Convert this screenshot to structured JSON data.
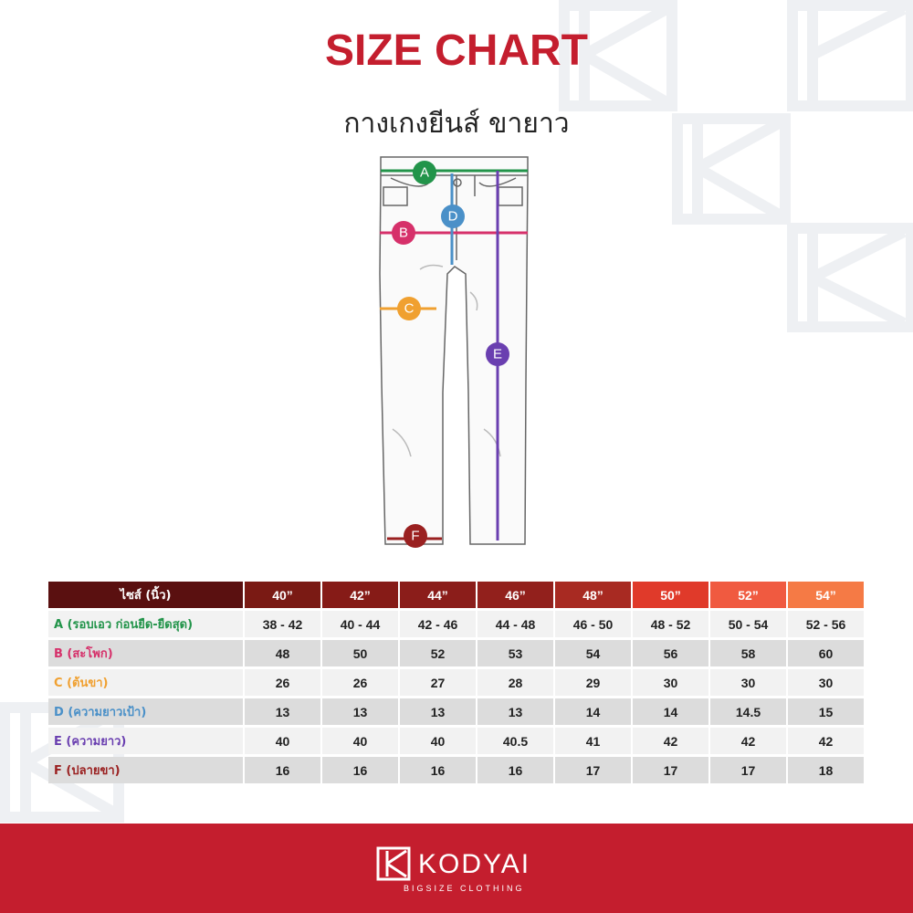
{
  "header": {
    "title": "SIZE CHART",
    "subtitle": "กางเกงยีนส์ ขายาว"
  },
  "diagram": {
    "labels": [
      "A",
      "B",
      "C",
      "D",
      "E",
      "F"
    ]
  },
  "table": {
    "header": [
      "ไซส์ (นิ้ว)",
      "40”",
      "42”",
      "44”",
      "46”",
      "48”",
      "50”",
      "52”",
      "54”"
    ],
    "rows": [
      [
        "A (รอบเอว ก่อนยืด-ยืดสุด)",
        "38 - 42",
        "40 - 44",
        "42 - 46",
        "44 - 48",
        "46 - 50",
        "48 - 52",
        "50 - 54",
        "52 - 56"
      ],
      [
        "B (สะโพก)",
        48,
        50,
        52,
        53,
        54,
        56,
        58,
        60
      ],
      [
        "C (ต้นขา)",
        26,
        26,
        27,
        28,
        29,
        30,
        30,
        30
      ],
      [
        "D (ความยาวเป้า)",
        13,
        13,
        13,
        13,
        14,
        14,
        14.5,
        15
      ],
      [
        "E (ความยาว)",
        40,
        40,
        40,
        40.5,
        41,
        42,
        42,
        42
      ],
      [
        "F (ปลายขา)",
        16,
        16,
        16,
        16,
        17,
        17,
        17,
        18
      ]
    ]
  },
  "footer": {
    "brand": "KODYAI",
    "tagline": "BIGSIZE CLOTHING"
  }
}
